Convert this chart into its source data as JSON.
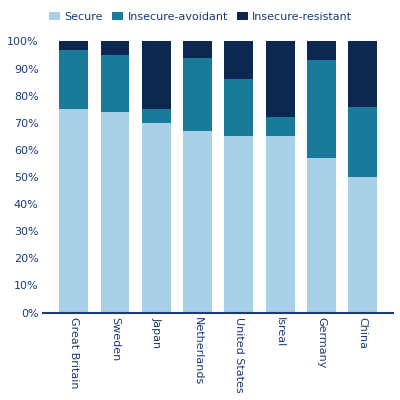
{
  "countries": [
    "Great Britain",
    "Sweden",
    "Japan",
    "Netherlands",
    "United States",
    "Isreal",
    "Germany",
    "China"
  ],
  "secure": [
    75,
    74,
    70,
    67,
    65,
    65,
    57,
    50
  ],
  "insecure_avoidant": [
    22,
    21,
    5,
    27,
    21,
    7,
    36,
    26
  ],
  "insecure_resistant": [
    3,
    5,
    25,
    6,
    14,
    28,
    7,
    24
  ],
  "color_secure": "#a8d0e8",
  "color_avoidant": "#1a7a99",
  "color_resistant": "#0d2850",
  "ylabel_ticks": [
    "0%",
    "10%",
    "20%",
    "30%",
    "40%",
    "50%",
    "60%",
    "70%",
    "80%",
    "90%",
    "100%"
  ],
  "ytick_vals": [
    0,
    10,
    20,
    30,
    40,
    50,
    60,
    70,
    80,
    90,
    100
  ],
  "legend_labels": [
    "Secure",
    "Insecure-avoidant",
    "Insecure-resistant"
  ],
  "axis_color": "#1a3a7a",
  "label_color": "#1a3a7a",
  "bar_width": 0.7,
  "tick_fontsize": 8,
  "legend_fontsize": 8
}
